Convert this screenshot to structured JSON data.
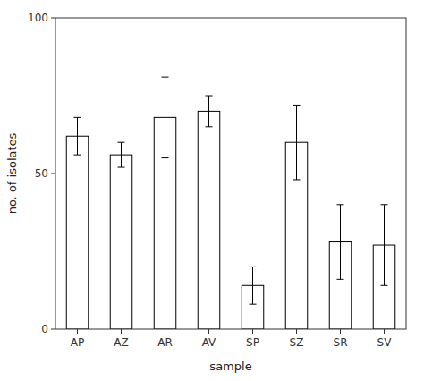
{
  "chart_data": {
    "type": "bar",
    "categories": [
      "AP",
      "AZ",
      "AR",
      "AV",
      "SP",
      "SZ",
      "SR",
      "SV"
    ],
    "values": [
      62,
      56,
      68,
      70,
      14,
      60,
      28,
      27
    ],
    "errors": [
      6,
      4,
      13,
      5,
      6,
      12,
      12,
      13
    ],
    "color": "#ffffff",
    "xlabel": "sample",
    "ylabel": "no. of isolates",
    "ylim": [
      0,
      100
    ],
    "yticks": [
      0,
      50,
      100
    ],
    "grid": false
  }
}
